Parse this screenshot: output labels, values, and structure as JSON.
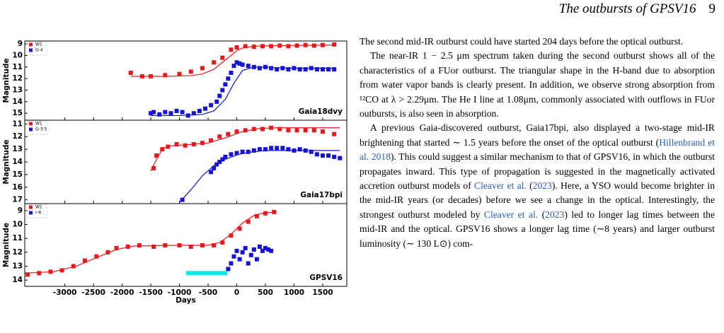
{
  "header": {
    "title": "The outbursts of GPSV16",
    "page": "9"
  },
  "chart_data": [
    {
      "type": "scatter",
      "annotation": "Gaia18dvy",
      "ylabel": "Magnitude",
      "xlim": [
        -3700,
        1920
      ],
      "xticks": [
        -3000,
        -2500,
        -2000,
        -1500,
        -1000,
        -500,
        0,
        500,
        1000,
        1500
      ],
      "ylim": [
        15.6,
        8.75
      ],
      "yticks": [
        9,
        10,
        11,
        12,
        13,
        14,
        15
      ],
      "legend": "upper left",
      "series": [
        {
          "name": "W1",
          "color": "#e8191c",
          "x": [
            -1850,
            -1650,
            -1500,
            -1250,
            -1000,
            -800,
            -600,
            -400,
            -250,
            -100,
            0,
            150,
            300,
            450,
            600,
            750,
            900,
            1050,
            1200,
            1350,
            1500,
            1700
          ],
          "values": [
            11.5,
            11.8,
            11.8,
            11.7,
            11.6,
            11.4,
            11.1,
            10.6,
            10.2,
            9.5,
            9.3,
            9.2,
            9.25,
            9.2,
            9.2,
            9.15,
            9.2,
            9.15,
            9.1,
            9.15,
            9.1,
            9.05
          ]
        },
        {
          "name": "G-4",
          "color": "#1414d2",
          "x": [
            -1500,
            -1450,
            -1350,
            -1250,
            -1150,
            -1050,
            -950,
            -850,
            -750,
            -650,
            -550,
            -450,
            -350,
            -300,
            -250,
            -200,
            -150,
            -100,
            -50,
            0,
            50,
            100,
            200,
            300,
            400,
            500,
            600,
            700,
            800,
            900,
            1000,
            1100,
            1200,
            1300,
            1400,
            1500,
            1600,
            1700
          ],
          "values": [
            15.0,
            14.9,
            15.1,
            14.9,
            15.0,
            14.8,
            14.9,
            15.2,
            15.0,
            14.8,
            14.6,
            14.3,
            14.0,
            13.5,
            13.0,
            12.5,
            12.0,
            11.5,
            10.9,
            10.6,
            10.7,
            10.8,
            10.9,
            11.0,
            11.1,
            11.0,
            11.1,
            11.2,
            11.1,
            11.2,
            11.1,
            11.2,
            11.2,
            11.1,
            11.2,
            11.2,
            11.2,
            11.2
          ]
        }
      ],
      "fits": [
        {
          "color": "#e8191c",
          "x": [
            -1850,
            -1200,
            -800,
            -600,
            -400,
            -200,
            0,
            100,
            300,
            700,
            1700
          ],
          "values": [
            11.8,
            11.8,
            11.75,
            11.6,
            11.2,
            10.4,
            9.6,
            9.35,
            9.2,
            9.15,
            9.1
          ]
        },
        {
          "color": "#1414d2",
          "x": [
            -1500,
            -1000,
            -600,
            -400,
            -200,
            -50,
            100,
            300,
            600,
            1000,
            1700
          ],
          "values": [
            15.2,
            15.2,
            15.1,
            14.8,
            13.8,
            12.4,
            11.3,
            11.0,
            11.05,
            11.1,
            11.1
          ]
        }
      ]
    },
    {
      "type": "scatter",
      "annotation": "Gaia17bpi",
      "ylabel": "Magnitude",
      "xlim": [
        -3700,
        1920
      ],
      "xticks": [
        -3000,
        -2500,
        -2000,
        -1500,
        -1000,
        -500,
        0,
        500,
        1000,
        1500
      ],
      "ylim": [
        17.3,
        10.7
      ],
      "yticks": [
        11,
        12,
        13,
        14,
        15,
        16,
        17
      ],
      "legend": "upper left",
      "series": [
        {
          "name": "W1",
          "color": "#e8191c",
          "x": [
            -1450,
            -1400,
            -1300,
            -1200,
            -1050,
            -900,
            -750,
            -600,
            -450,
            -300,
            -150,
            0,
            150,
            300,
            450,
            600,
            750,
            900,
            1050,
            1200,
            1350,
            1500,
            1700
          ],
          "values": [
            14.5,
            13.5,
            13.0,
            12.8,
            12.6,
            12.7,
            12.6,
            12.5,
            12.3,
            12.0,
            11.8,
            11.6,
            11.5,
            11.4,
            11.4,
            11.3,
            11.4,
            11.5,
            11.5,
            11.5,
            11.5,
            11.6,
            11.8
          ]
        },
        {
          "name": "G-3.5",
          "color": "#1414d2",
          "x": [
            -950,
            -450,
            -400,
            -350,
            -300,
            -250,
            -200,
            -100,
            0,
            100,
            200,
            300,
            400,
            500,
            600,
            700,
            800,
            900,
            1000,
            1100,
            1200,
            1300,
            1400,
            1500,
            1600,
            1700,
            1800
          ],
          "values": [
            17.0,
            14.8,
            14.5,
            14.2,
            14.0,
            13.8,
            13.6,
            13.4,
            13.3,
            13.2,
            13.2,
            13.1,
            13.0,
            13.0,
            12.9,
            12.9,
            12.9,
            13.0,
            13.1,
            13.0,
            13.1,
            13.2,
            13.4,
            13.5,
            13.5,
            13.6,
            13.7
          ]
        }
      ],
      "fits": [
        {
          "color": "#e8191c",
          "x": [
            -1500,
            -1400,
            -1300,
            -1200,
            -900,
            -500,
            -200,
            100,
            400,
            700,
            1800
          ],
          "values": [
            14.7,
            13.8,
            13.0,
            12.75,
            12.65,
            12.5,
            12.1,
            11.6,
            11.35,
            11.3,
            11.3
          ]
        },
        {
          "color": "#1414d2",
          "x": [
            -1000,
            -800,
            -600,
            -400,
            -200,
            0,
            200,
            500,
            800,
            1800
          ],
          "values": [
            17.2,
            16.2,
            15.1,
            14.3,
            13.8,
            13.45,
            13.25,
            13.1,
            13.1,
            13.1
          ]
        }
      ]
    },
    {
      "type": "scatter",
      "annotation": "GPSV16",
      "ylabel": "Magnitude",
      "xlabel": "Days",
      "xlim": [
        -3700,
        1920
      ],
      "xticks": [
        -3000,
        -2500,
        -2000,
        -1500,
        -1000,
        -500,
        0,
        500,
        1000,
        1500
      ],
      "ylim": [
        14.45,
        8.5
      ],
      "yticks": [
        9,
        10,
        11,
        12,
        13,
        14
      ],
      "legend": "upper left",
      "series": [
        {
          "name": "W1",
          "color": "#e8191c",
          "x": [
            -3650,
            -3450,
            -3250,
            -3050,
            -2850,
            -2650,
            -2450,
            -2250,
            -2100,
            -1900,
            -1700,
            -1450,
            -1250,
            -1000,
            -800,
            -600,
            -400,
            -250,
            -100,
            50,
            200,
            350,
            500,
            650
          ],
          "values": [
            13.6,
            13.5,
            13.4,
            13.3,
            13.0,
            12.6,
            12.3,
            12.0,
            11.7,
            11.6,
            11.5,
            11.6,
            11.5,
            11.5,
            11.6,
            11.5,
            11.5,
            11.3,
            10.8,
            10.3,
            9.8,
            9.4,
            9.2,
            9.1
          ]
        },
        {
          "name": "r-8",
          "color": "#1414d2",
          "x": [
            -150,
            -100,
            -50,
            0,
            50,
            100,
            150,
            200,
            250,
            300,
            350,
            400,
            450,
            500,
            550,
            600
          ],
          "values": [
            13.2,
            12.8,
            12.3,
            11.9,
            12.5,
            12.0,
            11.7,
            12.8,
            12.2,
            11.8,
            12.5,
            11.6,
            11.9,
            11.7,
            11.8,
            11.9
          ]
        },
        {
          "color": "#17e6e6",
          "x": [
            -850,
            -800,
            -750,
            -700,
            -650,
            -600,
            -550,
            -500,
            -450,
            -400,
            -350,
            -300,
            -250,
            -200
          ],
          "values": [
            13.5,
            13.5,
            13.5,
            13.5,
            13.5,
            13.5,
            13.5,
            13.5,
            13.5,
            13.5,
            13.5,
            13.5,
            13.5,
            13.5
          ]
        }
      ],
      "fits": [
        {
          "color": "#e8191c",
          "x": [
            -3700,
            -3200,
            -2800,
            -2400,
            -2100,
            -1800,
            -1000,
            -500,
            -300,
            -100,
            100,
            300,
            500,
            700
          ],
          "values": [
            13.5,
            13.4,
            13.0,
            12.3,
            11.8,
            11.55,
            11.5,
            11.5,
            11.3,
            10.7,
            9.9,
            9.35,
            9.15,
            9.1
          ]
        }
      ]
    }
  ],
  "body": {
    "paragraphs": [
      [
        {
          "text": "The second mid-IR outburst could have started 204 days before the optical outburst."
        }
      ],
      [
        {
          "text": "The near-IR 1 − 2.5 μm spectrum taken during the second outburst shows all of the characteristics of a FUor outburst. The triangular shape in the H-band due to absorption from water vapor bands is clearly present. In addition, we observe strong absorption from ¹²CO at λ > 2.29μm. The He I line at 1.08μm, commonly associated with outflows in FUor outbursts, is also seen in absorption."
        }
      ],
      [
        {
          "text": "A previous Gaia-discovered outburst, Gaia17bpi, also displayed a two-stage mid-IR brightening that started ∼ 1.5 years before the onset of the optical outburst ("
        },
        {
          "text": "Hillenbrand et al. 2018",
          "link": true
        },
        {
          "text": "). This could suggest a similar mechanism to that of GPSV16, in which the outburst propagates inward. This type of propagation is suggested in the magnetically activated accretion outburst models of "
        },
        {
          "text": "Cleaver et al.",
          "link": true
        },
        {
          "text": " ("
        },
        {
          "text": "2023",
          "link": true
        },
        {
          "text": "). Here, a YSO would become brighter in the mid-IR years (or decades) before we see a change in the optical. Interestingly, the strongest outburst modeled by "
        },
        {
          "text": "Cleaver et al.",
          "link": true
        },
        {
          "text": " ("
        },
        {
          "text": "2023",
          "link": true
        },
        {
          "text": ") led to longer lag times between the mid-IR and the optical. GPSV16 shows a longer lag time (∼8 years) and larger outburst luminosity (∼ 130 L⊙) com-"
        }
      ]
    ]
  }
}
